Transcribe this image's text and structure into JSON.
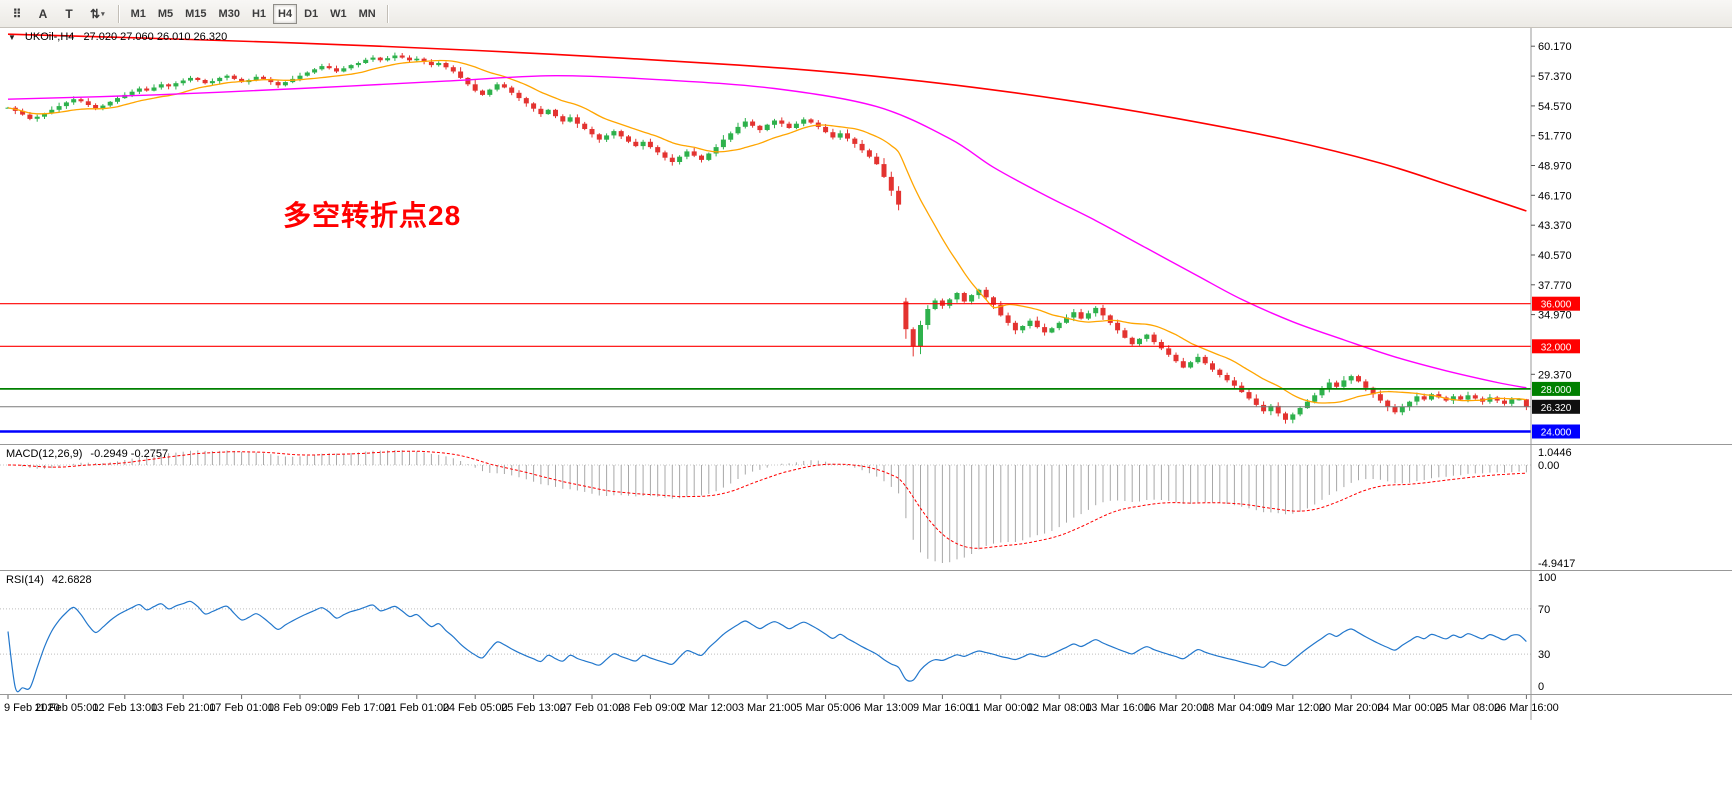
{
  "toolbar": {
    "icons": [
      {
        "name": "chart-grid-icon",
        "glyph": "⠿",
        "caret": false
      },
      {
        "name": "cursor-tool-icon",
        "glyph": "A",
        "caret": false
      },
      {
        "name": "text-tool-icon",
        "glyph": "T",
        "caret": false
      },
      {
        "name": "arrows-tool-icon",
        "glyph": "⇅",
        "caret": true
      }
    ],
    "timeframes": [
      "M1",
      "M5",
      "M15",
      "M30",
      "H1",
      "H4",
      "D1",
      "W1",
      "MN"
    ],
    "active_timeframe": "H4"
  },
  "chart_title": {
    "symbol": "UKOil-,H4",
    "ohlc": "27.020 27.060 26.010 26.320"
  },
  "annotation": {
    "text": "多空转折点28",
    "color": "#ff0000"
  },
  "chart_data": [
    {
      "type": "candlestick",
      "title": "UKOil-,H4",
      "ylim": [
        23.2,
        61.6
      ],
      "y_tick_values": [
        60.17,
        57.37,
        54.57,
        51.77,
        48.97,
        46.17,
        43.37,
        40.57,
        37.77,
        34.97,
        29.37
      ],
      "y_tick_labels": [
        "60.170",
        "57.370",
        "54.570",
        "51.770",
        "48.970",
        "46.170",
        "43.370",
        "40.570",
        "37.770",
        "34.970",
        "29.370"
      ],
      "closes": [
        54.4,
        54.1,
        53.75,
        53.35,
        53.55,
        53.85,
        54.2,
        54.55,
        54.9,
        55.2,
        55.0,
        54.65,
        54.35,
        54.6,
        54.95,
        55.3,
        55.6,
        55.9,
        56.2,
        56.0,
        56.3,
        56.6,
        56.4,
        56.7,
        56.95,
        57.2,
        57.0,
        56.7,
        56.9,
        57.2,
        57.4,
        57.1,
        56.8,
        57.0,
        57.3,
        57.1,
        56.8,
        56.5,
        56.8,
        57.1,
        57.4,
        57.7,
        58.0,
        58.3,
        58.1,
        57.8,
        58.1,
        58.4,
        58.6,
        58.9,
        59.1,
        58.85,
        59.05,
        59.3,
        59.1,
        58.85,
        59.0,
        58.7,
        58.4,
        58.6,
        58.2,
        57.8,
        57.2,
        56.6,
        56.0,
        55.6,
        56.1,
        56.6,
        56.3,
        55.8,
        55.3,
        54.8,
        54.3,
        53.8,
        54.2,
        53.6,
        53.1,
        53.5,
        52.9,
        52.4,
        51.9,
        51.4,
        51.8,
        52.2,
        51.7,
        51.2,
        50.8,
        51.2,
        50.7,
        50.2,
        49.7,
        49.3,
        49.8,
        50.3,
        49.9,
        49.5,
        50.1,
        50.7,
        51.4,
        52.0,
        52.6,
        53.1,
        52.7,
        52.3,
        52.8,
        53.2,
        52.9,
        52.5,
        52.9,
        53.3,
        53.0,
        52.6,
        52.1,
        51.6,
        52.0,
        51.5,
        51.0,
        50.4,
        49.8,
        49.1,
        47.9,
        46.6,
        45.3,
        33.6,
        32.0,
        34.0,
        35.5,
        36.3,
        35.8,
        36.4,
        37.0,
        36.2,
        36.8,
        37.3,
        36.6,
        35.9,
        34.9,
        34.2,
        33.5,
        33.9,
        34.4,
        33.8,
        33.3,
        33.7,
        34.2,
        34.7,
        35.2,
        34.6,
        35.1,
        35.6,
        34.9,
        34.2,
        33.5,
        32.8,
        32.2,
        32.7,
        33.1,
        32.4,
        31.8,
        31.2,
        30.6,
        30.0,
        30.5,
        31.0,
        30.4,
        29.8,
        29.3,
        28.8,
        28.3,
        27.7,
        27.1,
        26.5,
        25.9,
        26.4,
        25.7,
        25.1,
        25.6,
        26.2,
        26.8,
        27.4,
        28.0,
        28.6,
        28.2,
        28.8,
        29.2,
        28.7,
        28.1,
        27.5,
        26.9,
        26.3,
        25.8,
        26.3,
        26.8,
        27.3,
        27.0,
        27.5,
        27.2,
        26.9,
        27.3,
        27.0,
        27.4,
        27.1,
        26.8,
        27.2,
        26.9,
        26.6,
        27.0,
        27.02,
        26.32
      ],
      "overrides": {
        "123": {
          "o": 36.2,
          "h": 36.55
        },
        "124": {
          "l": 31.05
        },
        "208": {
          "o": 27.02,
          "h": 27.06,
          "l": 26.01,
          "c": 26.32
        }
      },
      "hlines": [
        {
          "price": 36.0,
          "label": "36.000",
          "color": "#ff0000",
          "width": 1.2
        },
        {
          "price": 32.0,
          "label": "32.000",
          "color": "#ff0000",
          "width": 1.2
        },
        {
          "price": 28.0,
          "label": "28.000",
          "color": "#008000",
          "width": 1.8
        },
        {
          "price": 24.0,
          "label": "24.000",
          "color": "#0000ff",
          "width": 2.4
        }
      ],
      "current_price": {
        "value": 26.32,
        "label": "26.320"
      },
      "ma_fast_period": 13,
      "ma_mid_points": [
        [
          0,
          55.2
        ],
        [
          20,
          55.6
        ],
        [
          40,
          56.2
        ],
        [
          60,
          56.9
        ],
        [
          75,
          57.4
        ],
        [
          90,
          57.0
        ],
        [
          105,
          56.2
        ],
        [
          119,
          54.5
        ],
        [
          129,
          51.5
        ],
        [
          135,
          48.8
        ],
        [
          142,
          46.2
        ],
        [
          149,
          43.8
        ],
        [
          156,
          41.2
        ],
        [
          163,
          38.6
        ],
        [
          169,
          36.4
        ],
        [
          176,
          34.3
        ],
        [
          183,
          32.6
        ],
        [
          190,
          31.0
        ],
        [
          197,
          29.7
        ],
        [
          204,
          28.6
        ],
        [
          208,
          28.1
        ]
      ],
      "ma_slow_points": [
        [
          0,
          61.3
        ],
        [
          25,
          60.8
        ],
        [
          50,
          60.2
        ],
        [
          75,
          59.4
        ],
        [
          100,
          58.4
        ],
        [
          115,
          57.6
        ],
        [
          130,
          56.5
        ],
        [
          145,
          55.1
        ],
        [
          160,
          53.4
        ],
        [
          175,
          51.4
        ],
        [
          188,
          49.2
        ],
        [
          198,
          47.0
        ],
        [
          208,
          44.7
        ]
      ],
      "colors": {
        "bull": "#2eb14c",
        "bear": "#e33330",
        "ma_fast": "#ffa500",
        "ma_mid": "#ff00ff",
        "ma_slow": "#ff0000",
        "price_line": "#7a7a7a",
        "price_tag_bg": "#101010"
      }
    },
    {
      "type": "macd",
      "label": "MACD(12,26,9)",
      "values": "-0.2949 -0.2757",
      "fast": 12,
      "slow": 26,
      "signal": 9,
      "y_labels": {
        "max": "1.0446",
        "zero": "0.00",
        "min": "-4.9417"
      },
      "colors": {
        "hist": "#a8a8a8",
        "signal": "#ff0000",
        "zero": "#c8c8c8"
      }
    },
    {
      "type": "rsi",
      "label": "RSI(14)",
      "value": "42.6828",
      "period": 14,
      "levels": [
        30,
        70
      ],
      "y_labels": [
        "100",
        "70",
        "30",
        "0"
      ],
      "colors": {
        "line": "#2277cc",
        "level": "#bdbdbd"
      }
    }
  ],
  "time_axis": {
    "step_candles": 8,
    "labels": [
      "9 Feb 2020",
      "11 Feb 05:00",
      "12 Feb 13:00",
      "13 Feb 21:00",
      "17 Feb 01:00",
      "18 Feb 09:00",
      "19 Feb 17:00",
      "21 Feb 01:00",
      "24 Feb 05:00",
      "25 Feb 13:00",
      "27 Feb 01:00",
      "28 Feb 09:00",
      "2 Mar 12:00",
      "3 Mar 21:00",
      "5 Mar 05:00",
      "6 Mar 13:00",
      "9 Mar 16:00",
      "11 Mar 00:00",
      "12 Mar 08:00",
      "13 Mar 16:00",
      "16 Mar 20:00",
      "18 Mar 04:00",
      "19 Mar 12:00",
      "20 Mar 20:00",
      "24 Mar 00:00",
      "25 Mar 08:00",
      "26 Mar 16:00"
    ]
  }
}
